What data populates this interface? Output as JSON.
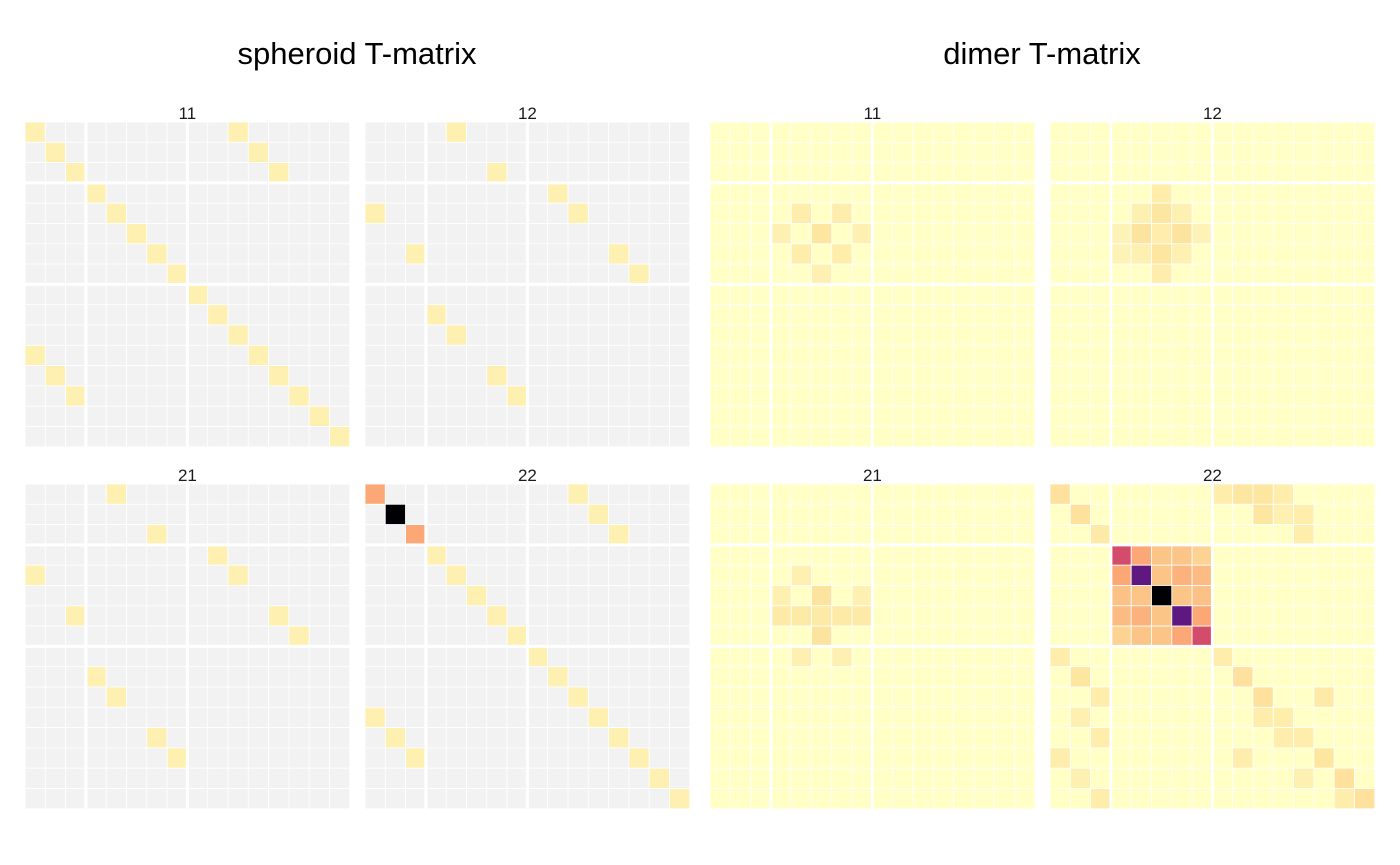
{
  "chart_data": [
    {
      "type": "heatmap",
      "title": "spheroid T-matrix",
      "grid": "16x16 cells per facet, block dividers after rows/cols 3 and 8",
      "background_color": "#f2f2f2",
      "colors": {
        "low": "#ffffcc",
        "high": "#000000"
      },
      "facets": [
        {
          "label": "11",
          "cells": [
            [
              0,
              0,
              0.05
            ],
            [
              1,
              1,
              0.05
            ],
            [
              2,
              2,
              0.05
            ],
            [
              3,
              3,
              0.05
            ],
            [
              4,
              4,
              0.05
            ],
            [
              5,
              5,
              0.05
            ],
            [
              6,
              6,
              0.05
            ],
            [
              7,
              7,
              0.05
            ],
            [
              8,
              8,
              0.05
            ],
            [
              9,
              9,
              0.05
            ],
            [
              10,
              10,
              0.05
            ],
            [
              11,
              11,
              0.05
            ],
            [
              12,
              12,
              0.05
            ],
            [
              13,
              13,
              0.05
            ],
            [
              14,
              14,
              0.05
            ],
            [
              15,
              15,
              0.05
            ],
            [
              0,
              10,
              0.05
            ],
            [
              1,
              11,
              0.05
            ],
            [
              2,
              12,
              0.05
            ],
            [
              11,
              0,
              0.05
            ],
            [
              12,
              1,
              0.05
            ],
            [
              13,
              2,
              0.05
            ]
          ]
        },
        {
          "label": "12",
          "cells": [
            [
              0,
              4,
              0.05
            ],
            [
              2,
              6,
              0.05
            ],
            [
              3,
              9,
              0.05
            ],
            [
              4,
              0,
              0.05
            ],
            [
              4,
              10,
              0.05
            ],
            [
              6,
              2,
              0.05
            ],
            [
              6,
              12,
              0.05
            ],
            [
              7,
              13,
              0.05
            ],
            [
              9,
              3,
              0.05
            ],
            [
              10,
              4,
              0.05
            ],
            [
              12,
              6,
              0.05
            ],
            [
              13,
              7,
              0.05
            ]
          ]
        },
        {
          "label": "21",
          "cells": [
            [
              0,
              4,
              0.05
            ],
            [
              2,
              6,
              0.05
            ],
            [
              3,
              9,
              0.05
            ],
            [
              4,
              0,
              0.05
            ],
            [
              4,
              10,
              0.05
            ],
            [
              6,
              2,
              0.05
            ],
            [
              6,
              12,
              0.05
            ],
            [
              7,
              13,
              0.05
            ],
            [
              9,
              3,
              0.05
            ],
            [
              10,
              4,
              0.05
            ],
            [
              12,
              6,
              0.05
            ],
            [
              13,
              7,
              0.05
            ]
          ]
        },
        {
          "label": "22",
          "cells": [
            [
              0,
              0,
              0.35
            ],
            [
              1,
              1,
              1.0
            ],
            [
              2,
              2,
              0.35
            ],
            [
              3,
              3,
              0.05
            ],
            [
              4,
              4,
              0.05
            ],
            [
              5,
              5,
              0.05
            ],
            [
              6,
              6,
              0.05
            ],
            [
              7,
              7,
              0.05
            ],
            [
              8,
              8,
              0.05
            ],
            [
              9,
              9,
              0.05
            ],
            [
              10,
              10,
              0.05
            ],
            [
              11,
              11,
              0.05
            ],
            [
              12,
              12,
              0.05
            ],
            [
              13,
              13,
              0.05
            ],
            [
              14,
              14,
              0.05
            ],
            [
              15,
              15,
              0.05
            ],
            [
              0,
              10,
              0.05
            ],
            [
              1,
              11,
              0.05
            ],
            [
              2,
              12,
              0.05
            ],
            [
              11,
              0,
              0.05
            ],
            [
              12,
              1,
              0.05
            ],
            [
              13,
              2,
              0.05
            ]
          ]
        }
      ]
    },
    {
      "type": "heatmap",
      "title": "dimer T-matrix",
      "grid": "16x16 cells per facet, block dividers after rows/cols 3 and 8",
      "background_color": "#ffffc6",
      "colors": {
        "low": "#ffffcc",
        "high": "#000000"
      },
      "facets": [
        {
          "label": "11",
          "cells": [
            [
              4,
              4,
              0.06
            ],
            [
              4,
              6,
              0.06
            ],
            [
              5,
              3,
              0.05
            ],
            [
              5,
              5,
              0.08
            ],
            [
              5,
              7,
              0.05
            ],
            [
              6,
              4,
              0.06
            ],
            [
              6,
              6,
              0.06
            ],
            [
              7,
              5,
              0.05
            ]
          ]
        },
        {
          "label": "12",
          "cells": [
            [
              3,
              5,
              0.06
            ],
            [
              4,
              4,
              0.05
            ],
            [
              4,
              5,
              0.08
            ],
            [
              4,
              6,
              0.05
            ],
            [
              5,
              3,
              0.04
            ],
            [
              5,
              4,
              0.09
            ],
            [
              5,
              5,
              0.06
            ],
            [
              5,
              6,
              0.09
            ],
            [
              5,
              7,
              0.04
            ],
            [
              6,
              3,
              0.04
            ],
            [
              6,
              4,
              0.05
            ],
            [
              6,
              5,
              0.08
            ],
            [
              6,
              6,
              0.05
            ],
            [
              7,
              5,
              0.06
            ]
          ]
        },
        {
          "label": "21",
          "cells": [
            [
              4,
              4,
              0.05
            ],
            [
              5,
              3,
              0.05
            ],
            [
              5,
              5,
              0.09
            ],
            [
              5,
              7,
              0.05
            ],
            [
              6,
              3,
              0.07
            ],
            [
              6,
              4,
              0.07
            ],
            [
              6,
              5,
              0.07
            ],
            [
              6,
              6,
              0.07
            ],
            [
              6,
              7,
              0.07
            ],
            [
              7,
              5,
              0.09
            ],
            [
              8,
              4,
              0.05
            ],
            [
              8,
              6,
              0.05
            ]
          ]
        },
        {
          "label": "22",
          "cells": [
            [
              0,
              0,
              0.1
            ],
            [
              1,
              1,
              0.1
            ],
            [
              2,
              2,
              0.07
            ],
            [
              0,
              8,
              0.06
            ],
            [
              0,
              9,
              0.08
            ],
            [
              0,
              10,
              0.08
            ],
            [
              0,
              11,
              0.06
            ],
            [
              1,
              10,
              0.08
            ],
            [
              1,
              11,
              0.05
            ],
            [
              1,
              12,
              0.06
            ],
            [
              2,
              12,
              0.06
            ],
            [
              3,
              3,
              0.6
            ],
            [
              3,
              4,
              0.35
            ],
            [
              3,
              5,
              0.2
            ],
            [
              3,
              6,
              0.2
            ],
            [
              3,
              7,
              0.15
            ],
            [
              4,
              3,
              0.35
            ],
            [
              4,
              4,
              0.85
            ],
            [
              4,
              5,
              0.2
            ],
            [
              4,
              6,
              0.3
            ],
            [
              4,
              7,
              0.25
            ],
            [
              5,
              3,
              0.22
            ],
            [
              5,
              4,
              0.2
            ],
            [
              5,
              5,
              1.0
            ],
            [
              5,
              6,
              0.2
            ],
            [
              5,
              7,
              0.22
            ],
            [
              6,
              3,
              0.25
            ],
            [
              6,
              4,
              0.3
            ],
            [
              6,
              5,
              0.2
            ],
            [
              6,
              6,
              0.85
            ],
            [
              6,
              7,
              0.35
            ],
            [
              7,
              3,
              0.15
            ],
            [
              7,
              4,
              0.2
            ],
            [
              7,
              5,
              0.2
            ],
            [
              7,
              6,
              0.35
            ],
            [
              7,
              7,
              0.6
            ],
            [
              8,
              0,
              0.06
            ],
            [
              9,
              1,
              0.08
            ],
            [
              10,
              2,
              0.06
            ],
            [
              8,
              8,
              0.06
            ],
            [
              9,
              9,
              0.1
            ],
            [
              10,
              10,
              0.1
            ],
            [
              11,
              11,
              0.06
            ],
            [
              12,
              12,
              0.06
            ],
            [
              13,
              13,
              0.08
            ],
            [
              14,
              14,
              0.1
            ],
            [
              15,
              15,
              0.1
            ],
            [
              11,
              1,
              0.05
            ],
            [
              12,
              2,
              0.06
            ],
            [
              13,
              0,
              0.06
            ],
            [
              14,
              1,
              0.05
            ],
            [
              15,
              2,
              0.06
            ],
            [
              10,
              13,
              0.07
            ],
            [
              11,
              10,
              0.06
            ],
            [
              12,
              11,
              0.06
            ],
            [
              13,
              9,
              0.06
            ],
            [
              14,
              12,
              0.05
            ],
            [
              15,
              14,
              0.06
            ]
          ]
        }
      ]
    }
  ]
}
